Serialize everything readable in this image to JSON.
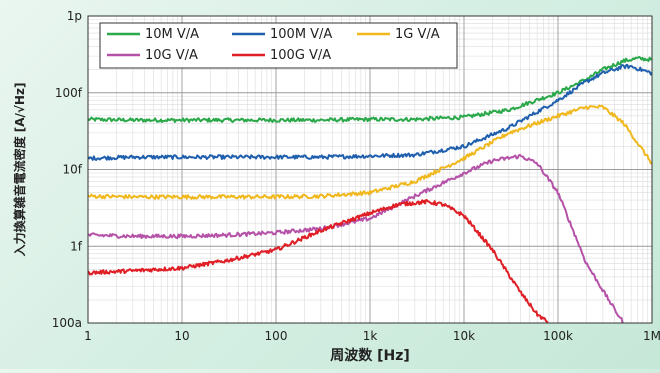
{
  "chart_data": {
    "type": "line",
    "xlabel": "周波数 [Hz]",
    "ylabel": "入力換算雑音電流密度 [A/√Hz]",
    "x_scale": "log",
    "y_scale": "log",
    "xlim": [
      1,
      1000000
    ],
    "ylim": [
      1e-16,
      1e-12
    ],
    "x_ticks": [
      {
        "value": 1,
        "label": "1"
      },
      {
        "value": 10,
        "label": "10"
      },
      {
        "value": 100,
        "label": "100"
      },
      {
        "value": 1000,
        "label": "1k"
      },
      {
        "value": 10000,
        "label": "10k"
      },
      {
        "value": 100000,
        "label": "100k"
      },
      {
        "value": 1000000,
        "label": "1M"
      }
    ],
    "y_ticks": [
      {
        "value": 1e-16,
        "label": "100a"
      },
      {
        "value": 1e-15,
        "label": "1f"
      },
      {
        "value": 1e-14,
        "label": "10f"
      },
      {
        "value": 1e-13,
        "label": "100f"
      },
      {
        "value": 1e-12,
        "label": "1p"
      }
    ],
    "grid": true,
    "legend": "top-left",
    "series": [
      {
        "name": "10M V/A",
        "color": "#2aa84a",
        "x": [
          1,
          3,
          10,
          30,
          100,
          300,
          1000,
          3000,
          10000,
          30000,
          100000,
          200000,
          300000,
          500000,
          700000,
          1000000
        ],
        "y": [
          4.5e-14,
          4.4e-14,
          4.4e-14,
          4.4e-14,
          4.4e-14,
          4.4e-14,
          4.5e-14,
          4.5e-14,
          4.8e-14,
          6e-14,
          1e-13,
          1.5e-13,
          2e-13,
          2.6e-13,
          2.8e-13,
          2.7e-13
        ]
      },
      {
        "name": "100M V/A",
        "color": "#1f5fae",
        "x": [
          1,
          3,
          10,
          30,
          100,
          300,
          1000,
          3000,
          10000,
          30000,
          100000,
          200000,
          300000,
          500000,
          600000,
          1000000
        ],
        "y": [
          1.4e-14,
          1.45e-14,
          1.45e-14,
          1.45e-14,
          1.45e-14,
          1.45e-14,
          1.5e-14,
          1.55e-14,
          2e-14,
          3.5e-14,
          8e-14,
          1.4e-13,
          1.8e-13,
          2.2e-13,
          2.2e-13,
          1.8e-13
        ]
      },
      {
        "name": "1G V/A",
        "color": "#f0b81c",
        "x": [
          1,
          3,
          10,
          30,
          100,
          300,
          1000,
          3000,
          10000,
          30000,
          100000,
          200000,
          300000,
          500000,
          1000000
        ],
        "y": [
          4.5e-15,
          4.4e-15,
          4.4e-15,
          4.4e-15,
          4.4e-15,
          4.5e-15,
          5e-15,
          7e-15,
          1.4e-14,
          3e-14,
          5e-14,
          6.5e-14,
          6.5e-14,
          4e-14,
          1.2e-14
        ]
      },
      {
        "name": "10G V/A",
        "color": "#b552a8",
        "x": [
          1,
          3,
          10,
          30,
          100,
          300,
          1000,
          3000,
          10000,
          20000,
          40000,
          60000,
          100000,
          200000,
          400000,
          500000
        ],
        "y": [
          1.4e-15,
          1.35e-15,
          1.35e-15,
          1.4e-15,
          1.5e-15,
          1.7e-15,
          2.3e-15,
          4.5e-15,
          9e-15,
          1.3e-14,
          1.5e-14,
          1.2e-14,
          5e-15,
          6e-16,
          1.5e-16,
          1e-16
        ]
      },
      {
        "name": "100G V/A",
        "color": "#e01e25",
        "x": [
          1,
          3,
          10,
          30,
          100,
          300,
          1000,
          2000,
          4000,
          6000,
          10000,
          20000,
          40000,
          60000,
          80000
        ],
        "y": [
          4.5e-16,
          4.8e-16,
          5.2e-16,
          6.5e-16,
          9e-16,
          1.6e-15,
          2.7e-15,
          3.5e-15,
          3.8e-15,
          3.5e-15,
          2.5e-15,
          9e-16,
          2.5e-16,
          1.3e-16,
          1e-16
        ]
      }
    ]
  }
}
